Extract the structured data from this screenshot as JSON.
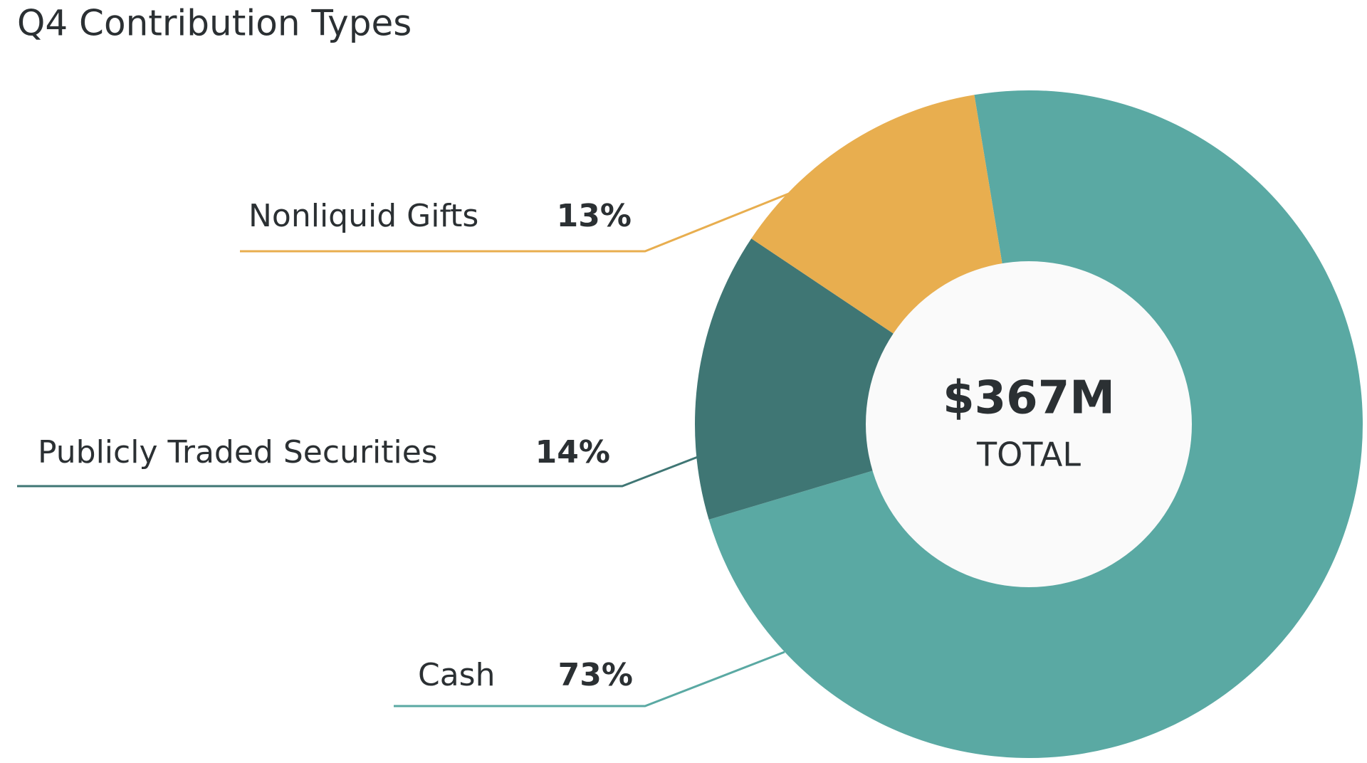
{
  "chart_data": {
    "type": "donut",
    "title": "Q4 Contribution Types",
    "center_value": "$367M",
    "center_label": "TOTAL",
    "categories": [
      "Cash",
      "Publicly Traded Securities",
      "Nonliquid Gifts"
    ],
    "values": [
      73,
      14,
      13
    ],
    "value_labels": [
      "73%",
      "14%",
      "13%"
    ],
    "colors": [
      "#5aa9a3",
      "#3f7674",
      "#e8ae4f"
    ]
  }
}
